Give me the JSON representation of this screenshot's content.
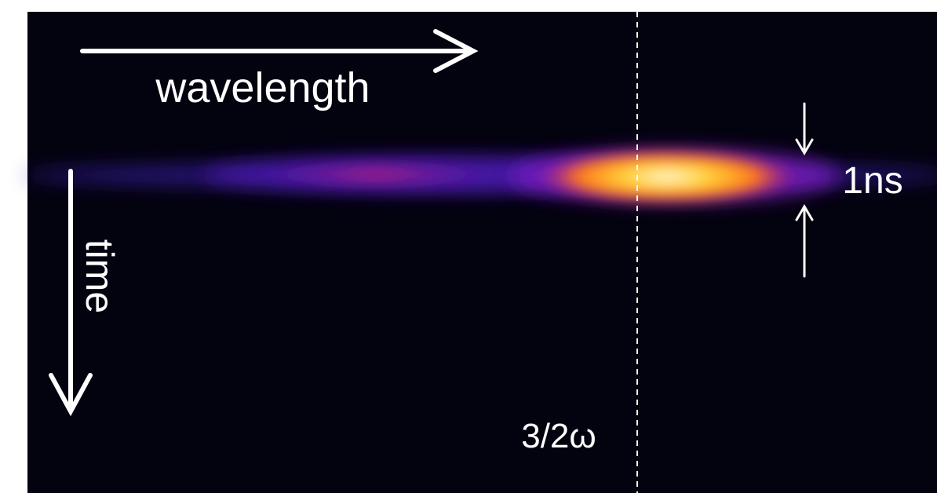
{
  "labels": {
    "wavelength": "wavelength",
    "time": "time",
    "pulse_width": "1ns",
    "frequency_marker": "3/2ω"
  }
}
